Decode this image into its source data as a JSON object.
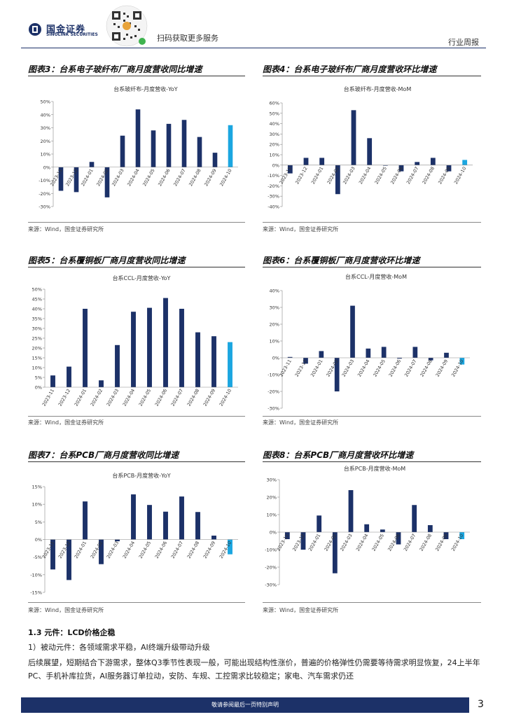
{
  "header": {
    "logo_cn": "国金证券",
    "logo_en": "SINOLINK SECURITIES",
    "qr_text": "扫码获取更多服务",
    "report_type": "行业周报",
    "colors": {
      "brand": "#1c3168"
    }
  },
  "colors": {
    "bar": "#1c3168",
    "bar_highlight": "#1ba6e0"
  },
  "chart_data": [
    {
      "id": "c3",
      "type": "bar",
      "figure_title": "图表3：台系电子玻纤布厂商月度营收同比增速",
      "title": "台系玻纤布-月度营收-YoY",
      "categories": [
        "2023-11",
        "2023-12",
        "2024-01",
        "2024-02",
        "2024-03",
        "2024-04",
        "2024-05",
        "2024-06",
        "2024-07",
        "2024-08",
        "2024-09",
        "2024-10"
      ],
      "values": [
        -18,
        -19,
        4,
        -23,
        24,
        44,
        28,
        33,
        36,
        23,
        11,
        32
      ],
      "ylim": [
        -30,
        50
      ],
      "yticks": [
        -30,
        -20,
        -10,
        0,
        10,
        20,
        30,
        40,
        50
      ],
      "source": "来源：Wind，国金证券研究所"
    },
    {
      "id": "c4",
      "type": "bar",
      "figure_title": "图表4：台系电子玻纤布厂商月度营收环比增速",
      "title": "台系玻纤布-月度营收-MoM",
      "categories": [
        "2023-11",
        "2023-12",
        "2024-01",
        "2024-02",
        "2024-03",
        "2024-04",
        "2024-05",
        "2024-06",
        "2024-07",
        "2024-08",
        "2024-09",
        "2024-10"
      ],
      "values": [
        -8,
        7,
        7,
        -28,
        53,
        26,
        0,
        -6,
        3,
        7,
        -6,
        5
      ],
      "ylim": [
        -40,
        60
      ],
      "yticks": [
        -40,
        -30,
        -20,
        -10,
        0,
        10,
        20,
        30,
        40,
        50,
        60
      ],
      "source": "来源：Wind，国金证券研究所"
    },
    {
      "id": "c5",
      "type": "bar",
      "figure_title": "图表5：台系覆铜板厂商月度营收同比增速",
      "title": "台系CCL-月度营收-YoY",
      "categories": [
        "2023-11",
        "2023-12",
        "2024-01",
        "2024-02",
        "2024-03",
        "2024-04",
        "2024-05",
        "2024-06",
        "2024-07",
        "2024-08",
        "2024-09",
        "2024-10"
      ],
      "values": [
        6,
        10.5,
        40,
        3.5,
        21.5,
        38.5,
        40.5,
        45.5,
        40,
        28,
        26,
        23
      ],
      "ylim": [
        0,
        50
      ],
      "yticks": [
        0,
        5,
        10,
        15,
        20,
        25,
        30,
        35,
        40,
        45,
        50
      ],
      "source": "来源：Wind，国金证券研究所"
    },
    {
      "id": "c6",
      "type": "bar",
      "figure_title": "图表6：台系覆铜板厂商月度营收环比增速",
      "title": "台系CCL-月度营收-MoM",
      "categories": [
        "2023-11",
        "2023-12",
        "2024-01",
        "2024-02",
        "2024-03",
        "2024-04",
        "2024-05",
        "2024-06",
        "2024-07",
        "2024-08",
        "2024-09",
        "2024-10"
      ],
      "values": [
        0.5,
        -3.5,
        4,
        -20,
        31,
        5.5,
        6.5,
        -0.5,
        6.5,
        -1.5,
        3,
        -4
      ],
      "ylim": [
        -30,
        40
      ],
      "yticks": [
        -30,
        -20,
        -10,
        0,
        10,
        20,
        30,
        40
      ],
      "source": "来源：Wind，国金证券研究所"
    },
    {
      "id": "c7",
      "type": "bar",
      "figure_title": "图表7：台系PCB厂商月度营收同比增速",
      "title": "台系PCB-月度营收-YoY",
      "categories": [
        "2023-11",
        "2023-12",
        "2024-01",
        "2024-02",
        "2024-03",
        "2024-04",
        "2024-05",
        "2024-06",
        "2024-07",
        "2024-08",
        "2024-09",
        "2024-10"
      ],
      "values": [
        -8.5,
        -11.5,
        10.8,
        -7,
        -0.5,
        12.8,
        9.8,
        7.9,
        12.2,
        7.8,
        1.1,
        -4.2
      ],
      "ylim": [
        -15,
        15
      ],
      "yticks": [
        -15,
        -10,
        -5,
        0,
        5,
        10,
        15
      ],
      "source": "来源：Wind，国金证券研究所"
    },
    {
      "id": "c8",
      "type": "bar",
      "figure_title": "图表8：台系PCB厂商月度营收环比增速",
      "title": "台系PCB-月度营收-MoM",
      "categories": [
        "2023-11",
        "2023-12",
        "2024-01",
        "2024-02",
        "2024-03",
        "2024-04",
        "2024-05",
        "2024-06",
        "2024-07",
        "2024-08",
        "2024-09",
        "2024-10"
      ],
      "values": [
        -4,
        -10,
        9.5,
        -23.5,
        24,
        4.5,
        1.5,
        -7,
        15.5,
        4,
        -4,
        -4
      ],
      "ylim": [
        -30,
        30
      ],
      "yticks": [
        -30,
        -20,
        -10,
        0,
        10,
        20,
        30
      ],
      "source": "来源：Wind，国金证券研究所"
    }
  ],
  "section": {
    "heading": "1.3 元件：LCD价格企稳",
    "paragraphs": [
      "1）被动元件：各领域需求平稳，AI终端升级带动升级",
      "后续展望，短期结合下游需求，整体Q3季节性表现一般，可能出现结构性涨价，普遍的价格弹性仍需要等待需求明显恢复，24上半年PC、手机补库拉货，AI服务器订单拉动，安防、车规、工控需求比较稳定；家电、汽车需求仍还"
    ]
  },
  "footer": {
    "disclaimer": "敬请参阅最后一页特别声明",
    "page_number": "3"
  }
}
